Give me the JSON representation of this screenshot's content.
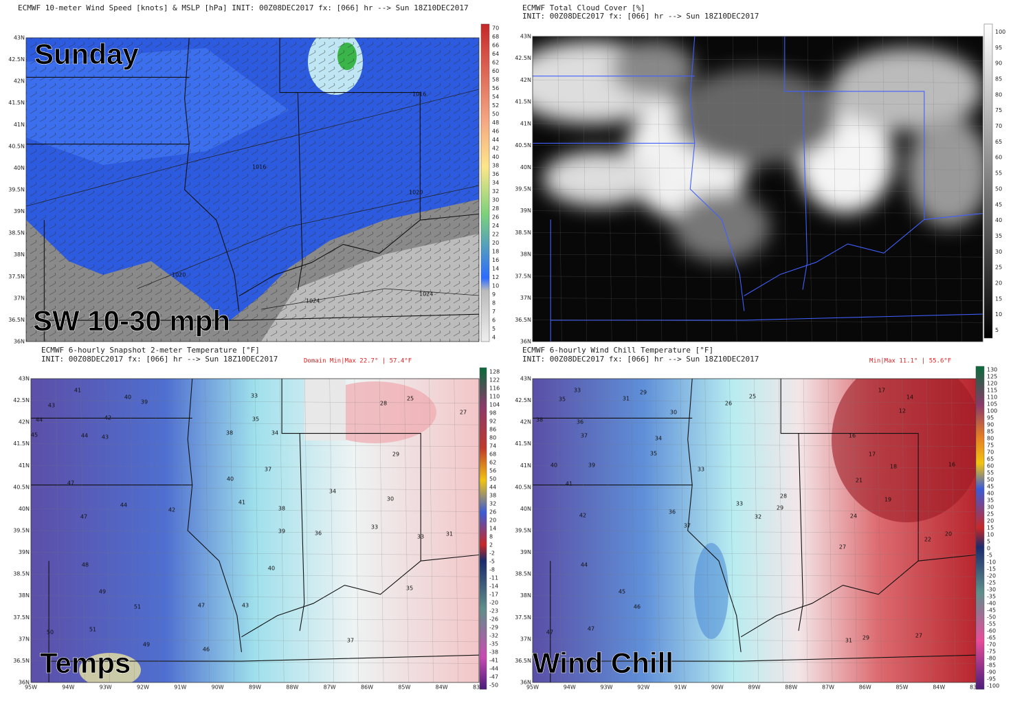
{
  "panels": [
    {
      "header": [
        "ECMWF 10-meter Wind Speed [knots] &  MSLP [hPa] INIT: 00Z08DEC2017 fx: [066] hr --> Sun 18Z10DEC2017"
      ],
      "overlay": [
        "Sunday",
        "SW 10-30 mph"
      ],
      "lat_labels": [
        "43N",
        "42.5N",
        "42N",
        "41.5N",
        "41N",
        "40.5N",
        "40N",
        "39.5N",
        "39N",
        "38.5N",
        "38N",
        "37.5N",
        "37N",
        "36.5N",
        "36N"
      ],
      "colorbar": [
        70,
        68,
        66,
        64,
        62,
        60,
        58,
        56,
        54,
        52,
        50,
        48,
        46,
        44,
        42,
        40,
        38,
        36,
        34,
        32,
        30,
        28,
        26,
        24,
        22,
        20,
        18,
        16,
        14,
        12,
        10,
        9,
        8,
        7,
        6,
        5,
        4
      ],
      "isobars": [
        "1016",
        "1016",
        "1020",
        "1020",
        "1024",
        "1024"
      ]
    },
    {
      "header": [
        "ECMWF Total Cloud Cover [%]",
        "INIT: 00Z08DEC2017 fx: [066] hr --> Sun 18Z10DEC2017"
      ],
      "lat_labels": [
        "43N",
        "42.5N",
        "42N",
        "41.5N",
        "41N",
        "40.5N",
        "40N",
        "39.5N",
        "39N",
        "38.5N",
        "38N",
        "37.5N",
        "37N",
        "36.5N",
        "36N"
      ],
      "colorbar": [
        100,
        95,
        90,
        85,
        80,
        75,
        70,
        65,
        60,
        55,
        50,
        45,
        40,
        35,
        30,
        25,
        20,
        15,
        10,
        5
      ]
    },
    {
      "header": [
        "ECMWF 6-hourly Snapshot 2-meter Temperature [°F]",
        "INIT: 00Z08DEC2017 fx: [066] hr --> Sun 18Z10DEC2017"
      ],
      "minmax": "Domain Min|Max 22.7° | 57.4°F",
      "overlay": [
        "Temps"
      ],
      "lat_labels": [
        "43N",
        "42.5N",
        "42N",
        "41.5N",
        "41N",
        "40.5N",
        "40N",
        "39.5N",
        "39N",
        "38.5N",
        "38N",
        "37.5N",
        "37N",
        "36.5N",
        "36N"
      ],
      "lon_labels": [
        "95W",
        "94W",
        "93W",
        "92W",
        "91W",
        "90W",
        "89W",
        "88W",
        "87W",
        "86W",
        "85W",
        "84W",
        "83W"
      ],
      "colorbar": [
        128,
        122,
        116,
        110,
        104,
        98,
        92,
        86,
        80,
        74,
        68,
        62,
        56,
        50,
        44,
        38,
        32,
        26,
        20,
        14,
        8,
        2,
        -2,
        -5,
        -8,
        -11,
        -14,
        -17,
        -20,
        -23,
        -26,
        -29,
        -32,
        -35,
        -38,
        -41,
        -44,
        -47,
        -50
      ],
      "stations": [
        41,
        40,
        39,
        43,
        44,
        42,
        45,
        44,
        43,
        47,
        44,
        47,
        42,
        48,
        49,
        51,
        50,
        51,
        49,
        38,
        35,
        34,
        33,
        37,
        40,
        41,
        39,
        38,
        36,
        34,
        33,
        29,
        28,
        25,
        27,
        30,
        31,
        33,
        35,
        37,
        47,
        46,
        40,
        43
      ]
    },
    {
      "header": [
        "ECMWF 6-hourly Wind Chill Temperature [°F]",
        "INIT: 00Z08DEC2017 fx: [066] hr --> Sun 18Z10DEC2017"
      ],
      "minmax": "Min|Max 11.1° | 55.6°F",
      "overlay": [
        "Wind Chill"
      ],
      "lat_labels": [
        "43N",
        "42.5N",
        "42N",
        "41.5N",
        "41N",
        "40.5N",
        "40N",
        "39.5N",
        "39N",
        "38.5N",
        "38N",
        "37.5N",
        "37N",
        "36.5N",
        "36N"
      ],
      "lon_labels": [
        "95W",
        "94W",
        "93W",
        "92W",
        "91W",
        "90W",
        "89W",
        "88W",
        "87W",
        "86W",
        "85W",
        "84W",
        "83W"
      ],
      "colorbar": [
        130,
        125,
        120,
        115,
        110,
        105,
        100,
        95,
        90,
        85,
        80,
        75,
        70,
        65,
        60,
        55,
        50,
        45,
        40,
        35,
        30,
        25,
        20,
        15,
        10,
        5,
        0,
        -5,
        -10,
        -15,
        -20,
        -25,
        -30,
        -35,
        -40,
        -45,
        -50,
        -55,
        -60,
        -65,
        -70,
        -75,
        -80,
        -85,
        -90,
        -95,
        -100
      ],
      "stations": [
        33,
        31,
        29,
        35,
        36,
        37,
        40,
        39,
        38,
        41,
        42,
        44,
        45,
        46,
        47,
        47,
        34,
        35,
        30,
        33,
        36,
        37,
        33,
        32,
        28,
        29,
        26,
        25,
        17,
        14,
        12,
        16,
        17,
        18,
        21,
        19,
        24,
        22,
        20,
        27,
        31,
        29,
        27,
        16
      ]
    }
  ]
}
